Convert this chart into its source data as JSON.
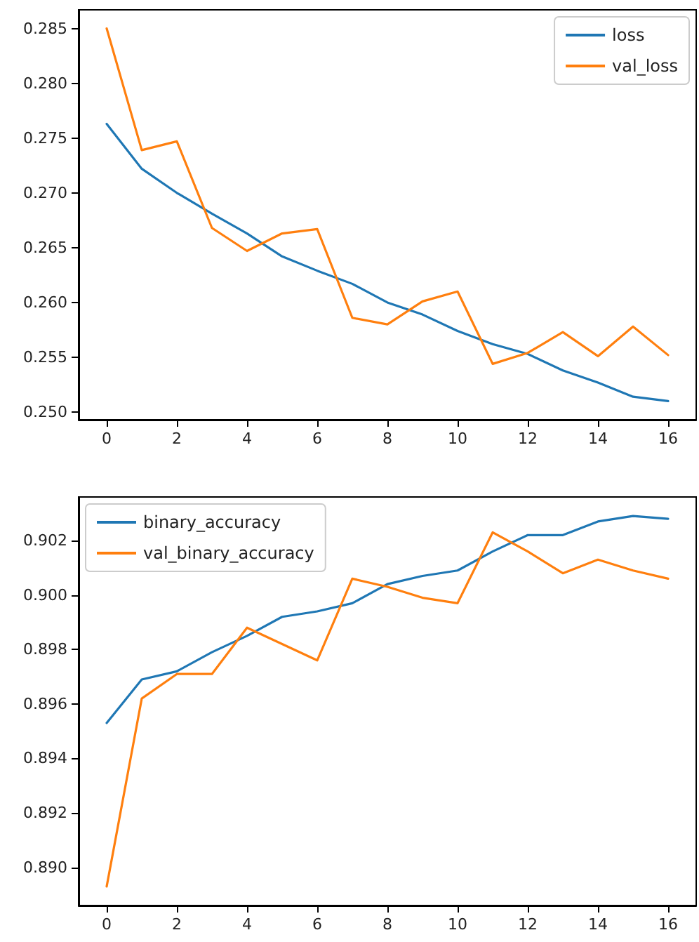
{
  "chart_data": [
    {
      "type": "line",
      "x": [
        0,
        1,
        2,
        3,
        4,
        5,
        6,
        7,
        8,
        9,
        10,
        11,
        12,
        13,
        14,
        15,
        16
      ],
      "series": [
        {
          "name": "loss",
          "color": "#1f77b4",
          "values": [
            0.2763,
            0.2722,
            0.27,
            0.2681,
            0.2663,
            0.2642,
            0.2629,
            0.2617,
            0.26,
            0.2589,
            0.2574,
            0.2562,
            0.2553,
            0.2538,
            0.2527,
            0.2514,
            0.251
          ]
        },
        {
          "name": "val_loss",
          "color": "#ff7f0e",
          "values": [
            0.285,
            0.2739,
            0.2747,
            0.2668,
            0.2647,
            0.2663,
            0.2667,
            0.2586,
            0.258,
            0.2601,
            0.261,
            0.2544,
            0.2554,
            0.2573,
            0.2551,
            0.2578,
            0.2552
          ]
        }
      ],
      "xlim": [
        -0.8,
        16.8
      ],
      "xticks": [
        0,
        2,
        4,
        6,
        8,
        10,
        12,
        14,
        16
      ],
      "ylim": [
        0.2493,
        0.2867
      ],
      "yticks": [
        {
          "value": 0.25,
          "label": "0.250"
        },
        0.255,
        {
          "value": 0.26,
          "label": "0.260"
        },
        0.265,
        {
          "value": 0.27,
          "label": "0.270"
        },
        0.275,
        {
          "value": 0.28,
          "label": "0.280"
        },
        0.285
      ],
      "legend": "top right",
      "grid": false,
      "marker": "none",
      "line_style": "solid"
    },
    {
      "type": "line",
      "x": [
        0,
        1,
        2,
        3,
        4,
        5,
        6,
        7,
        8,
        9,
        10,
        11,
        12,
        13,
        14,
        15,
        16
      ],
      "series": [
        {
          "name": "binary_accuracy",
          "color": "#1f77b4",
          "values": [
            0.8953,
            0.8969,
            0.8972,
            0.8979,
            0.8985,
            0.8992,
            0.8994,
            0.8997,
            0.9004,
            0.9007,
            0.9009,
            0.9016,
            0.9022,
            0.9022,
            0.9027,
            0.9029,
            0.9028
          ]
        },
        {
          "name": "val_binary_accuracy",
          "color": "#ff7f0e",
          "values": [
            0.8893,
            0.8962,
            0.8971,
            0.8971,
            0.8988,
            0.8982,
            0.8976,
            0.9006,
            0.9003,
            0.8999,
            0.8997,
            0.9023,
            0.9016,
            0.9008,
            0.9013,
            0.9009,
            0.9006
          ]
        }
      ],
      "xlim": [
        -0.8,
        16.8
      ],
      "xticks": [
        0,
        2,
        4,
        6,
        8,
        10,
        12,
        14,
        16
      ],
      "ylim": [
        0.8886,
        0.9036
      ],
      "yticks": [
        {
          "value": 0.89,
          "label": "0.890"
        },
        0.892,
        0.894,
        0.896,
        0.898,
        {
          "value": 0.9,
          "label": "0.900"
        },
        0.902
      ],
      "legend": "top left",
      "grid": false,
      "marker": "none",
      "line_style": "solid"
    }
  ]
}
